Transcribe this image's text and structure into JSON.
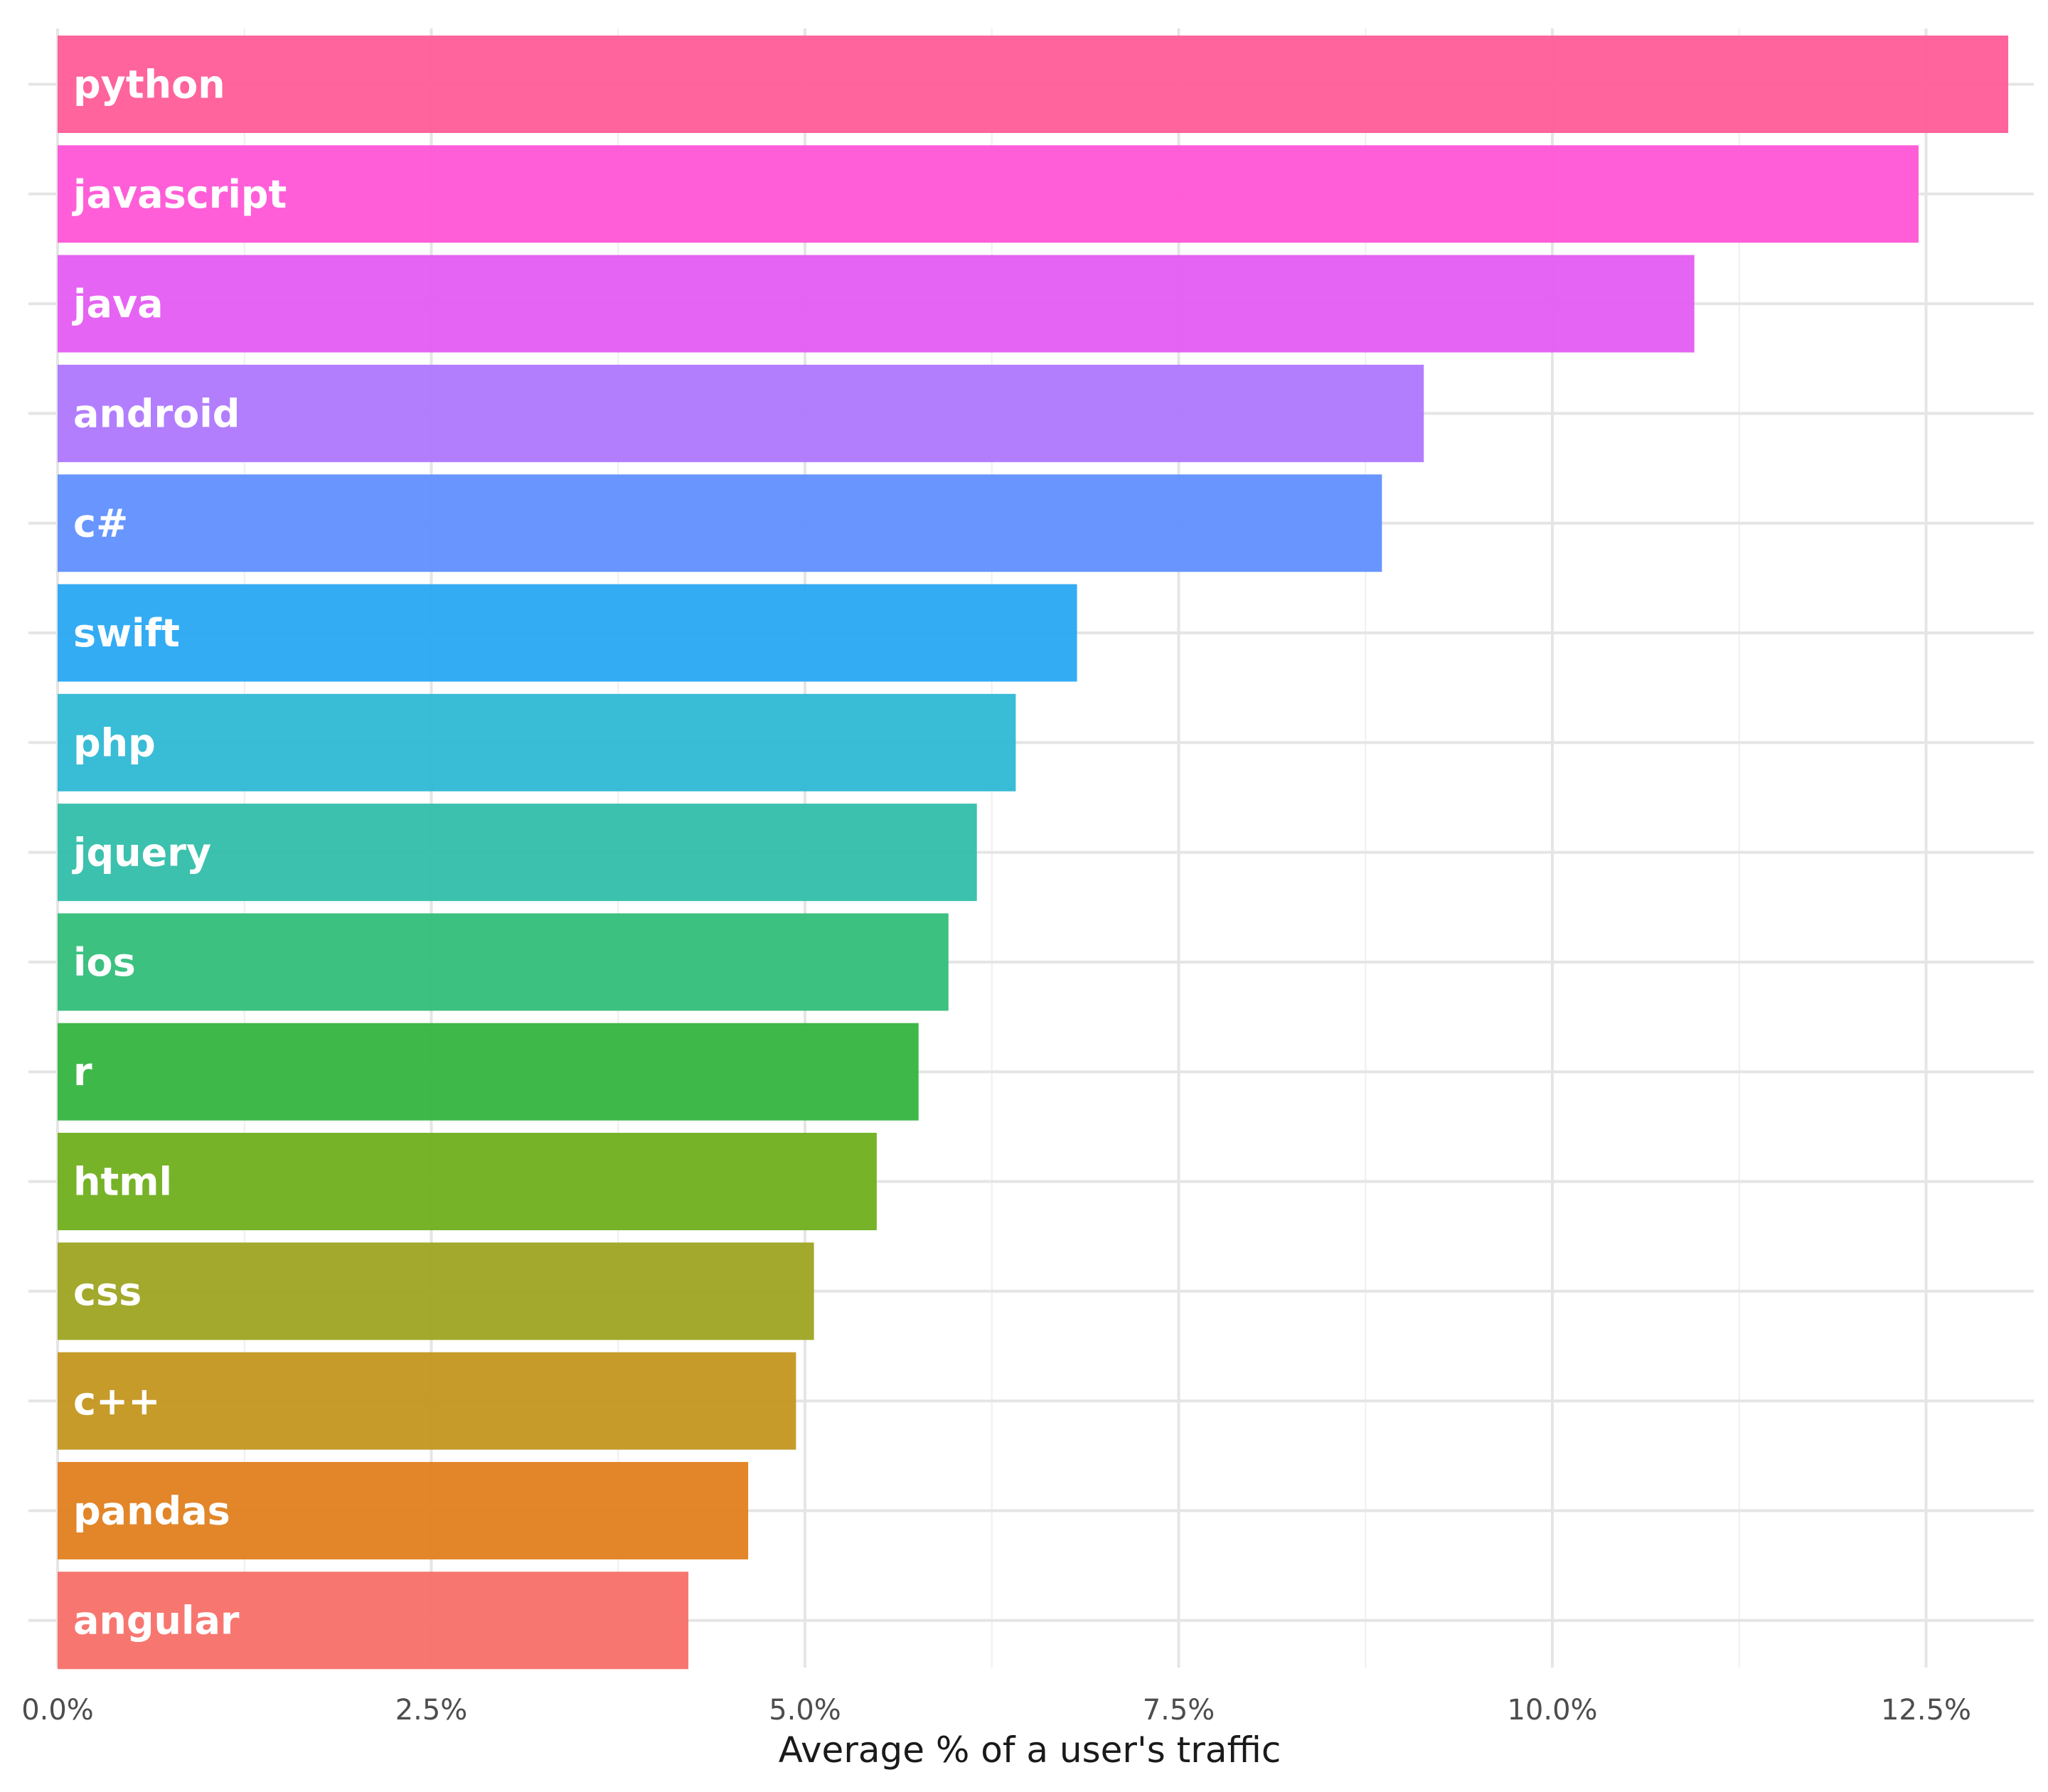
{
  "chart_data": {
    "type": "bar",
    "orientation": "horizontal",
    "title": "",
    "xlabel": "Average % of a user's traffic",
    "ylabel": "",
    "xlim": [
      0,
      13.5
    ],
    "x_ticks": [
      0,
      2.5,
      5,
      7.5,
      10,
      12.5
    ],
    "x_tick_labels": [
      "0.0%",
      "2.5%",
      "5.0%",
      "7.5%",
      "10.0%",
      "12.5%"
    ],
    "grid": true,
    "legend": "none",
    "categories": [
      "python",
      "javascript",
      "java",
      "android",
      "c#",
      "swift",
      "php",
      "jquery",
      "ios",
      "r",
      "html",
      "css",
      "c++",
      "pandas",
      "angular"
    ],
    "values": [
      13.05,
      12.45,
      10.95,
      9.14,
      8.86,
      6.82,
      6.41,
      6.15,
      5.96,
      5.76,
      5.48,
      5.06,
      4.94,
      4.62,
      4.22
    ],
    "colors": [
      "#FF5C97",
      "#FF55D6",
      "#E45CF2",
      "#AE77FE",
      "#6090FE",
      "#28A8F3",
      "#2EB8D4",
      "#31BEAA",
      "#31BE79",
      "#34B53F",
      "#6FAF1C",
      "#9DA421",
      "#C3961F",
      "#E0801E",
      "#F77068"
    ]
  }
}
